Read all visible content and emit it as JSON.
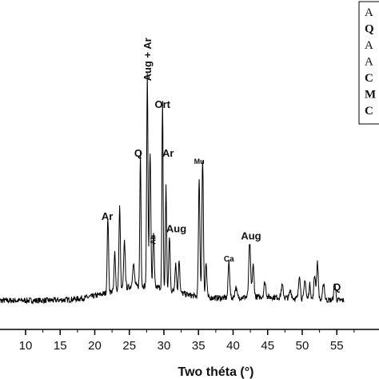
{
  "chart_data": {
    "type": "line",
    "xlabel": "Two théta (°)",
    "ylabel": "",
    "xlim": [
      5.8,
      56
    ],
    "ylim": [
      0,
      100
    ],
    "ticks": [
      10,
      15,
      20,
      25,
      30,
      35,
      40,
      45,
      50,
      55
    ],
    "tick_labels": [
      "10",
      "15",
      "20",
      "25",
      "30",
      "35",
      "40",
      "45",
      "50",
      "55"
    ],
    "peaks": [
      {
        "x": 21.9,
        "y": 31,
        "w": 0.14
      },
      {
        "x": 22.9,
        "y": 16,
        "w": 0.14
      },
      {
        "x": 23.6,
        "y": 34,
        "w": 0.14
      },
      {
        "x": 24.3,
        "y": 19,
        "w": 0.16
      },
      {
        "x": 25.6,
        "y": 9,
        "w": 0.2
      },
      {
        "x": 26.6,
        "y": 55,
        "w": 0.12
      },
      {
        "x": 27.6,
        "y": 86,
        "w": 0.13
      },
      {
        "x": 28.0,
        "y": 55,
        "w": 0.15
      },
      {
        "x": 28.5,
        "y": 22,
        "w": 0.14
      },
      {
        "x": 29.8,
        "y": 76,
        "w": 0.12
      },
      {
        "x": 30.3,
        "y": 43,
        "w": 0.12
      },
      {
        "x": 30.8,
        "y": 22,
        "w": 0.14
      },
      {
        "x": 31.7,
        "y": 12,
        "w": 0.15
      },
      {
        "x": 32.2,
        "y": 14,
        "w": 0.14
      },
      {
        "x": 35.1,
        "y": 48,
        "w": 0.15
      },
      {
        "x": 35.6,
        "y": 57,
        "w": 0.15
      },
      {
        "x": 36.1,
        "y": 14,
        "w": 0.15
      },
      {
        "x": 39.4,
        "y": 15,
        "w": 0.16
      },
      {
        "x": 40.4,
        "y": 4,
        "w": 0.2
      },
      {
        "x": 42.4,
        "y": 22,
        "w": 0.18
      },
      {
        "x": 42.9,
        "y": 13,
        "w": 0.18
      },
      {
        "x": 44.6,
        "y": 6,
        "w": 0.2
      },
      {
        "x": 47.1,
        "y": 5,
        "w": 0.2
      },
      {
        "x": 48.3,
        "y": 3,
        "w": 0.2
      },
      {
        "x": 49.6,
        "y": 10,
        "w": 0.17
      },
      {
        "x": 50.4,
        "y": 8,
        "w": 0.17
      },
      {
        "x": 51.1,
        "y": 6,
        "w": 0.17
      },
      {
        "x": 51.8,
        "y": 10,
        "w": 0.17
      },
      {
        "x": 52.2,
        "y": 15,
        "w": 0.17
      },
      {
        "x": 53.1,
        "y": 7,
        "w": 0.18
      },
      {
        "x": 54.7,
        "y": 7,
        "w": 0.18
      }
    ],
    "annotations": [
      {
        "text": "Ar",
        "x": 21.8,
        "y": 36,
        "size": 13,
        "rotate": 0
      },
      {
        "text": "Q",
        "x": 26.3,
        "y": 62,
        "size": 13,
        "rotate": 0
      },
      {
        "text": "Aug + Ar",
        "x": 27.6,
        "y": 93,
        "size": 13,
        "rotate": -90
      },
      {
        "text": "Ab",
        "x": 28.4,
        "y": 26,
        "size": 9,
        "rotate": -90
      },
      {
        "text": "Ort",
        "x": 29.8,
        "y": 82,
        "size": 13,
        "rotate": 0
      },
      {
        "text": "Ar",
        "x": 30.6,
        "y": 62,
        "size": 13,
        "rotate": 0
      },
      {
        "text": "Aug",
        "x": 31.8,
        "y": 31,
        "size": 13,
        "rotate": 0
      },
      {
        "text": "Mu",
        "x": 35.1,
        "y": 59,
        "size": 9,
        "rotate": 0
      },
      {
        "text": "Ca",
        "x": 39.4,
        "y": 19,
        "size": 10,
        "rotate": 0
      },
      {
        "text": "Aug",
        "x": 42.6,
        "y": 28,
        "size": 13,
        "rotate": 0
      },
      {
        "text": "Q",
        "x": 55.0,
        "y": 7,
        "size": 13,
        "rotate": 0
      }
    ],
    "legend": {
      "placement": "top-right",
      "entries": [
        {
          "text": "A",
          "bold": false
        },
        {
          "text": "Q",
          "bold": true
        },
        {
          "text": "A",
          "bold": false
        },
        {
          "text": "A",
          "bold": false
        },
        {
          "text": "C",
          "bold": true
        },
        {
          "text": "M",
          "bold": true
        },
        {
          "text": "C",
          "bold": true
        }
      ]
    },
    "grid": false
  }
}
